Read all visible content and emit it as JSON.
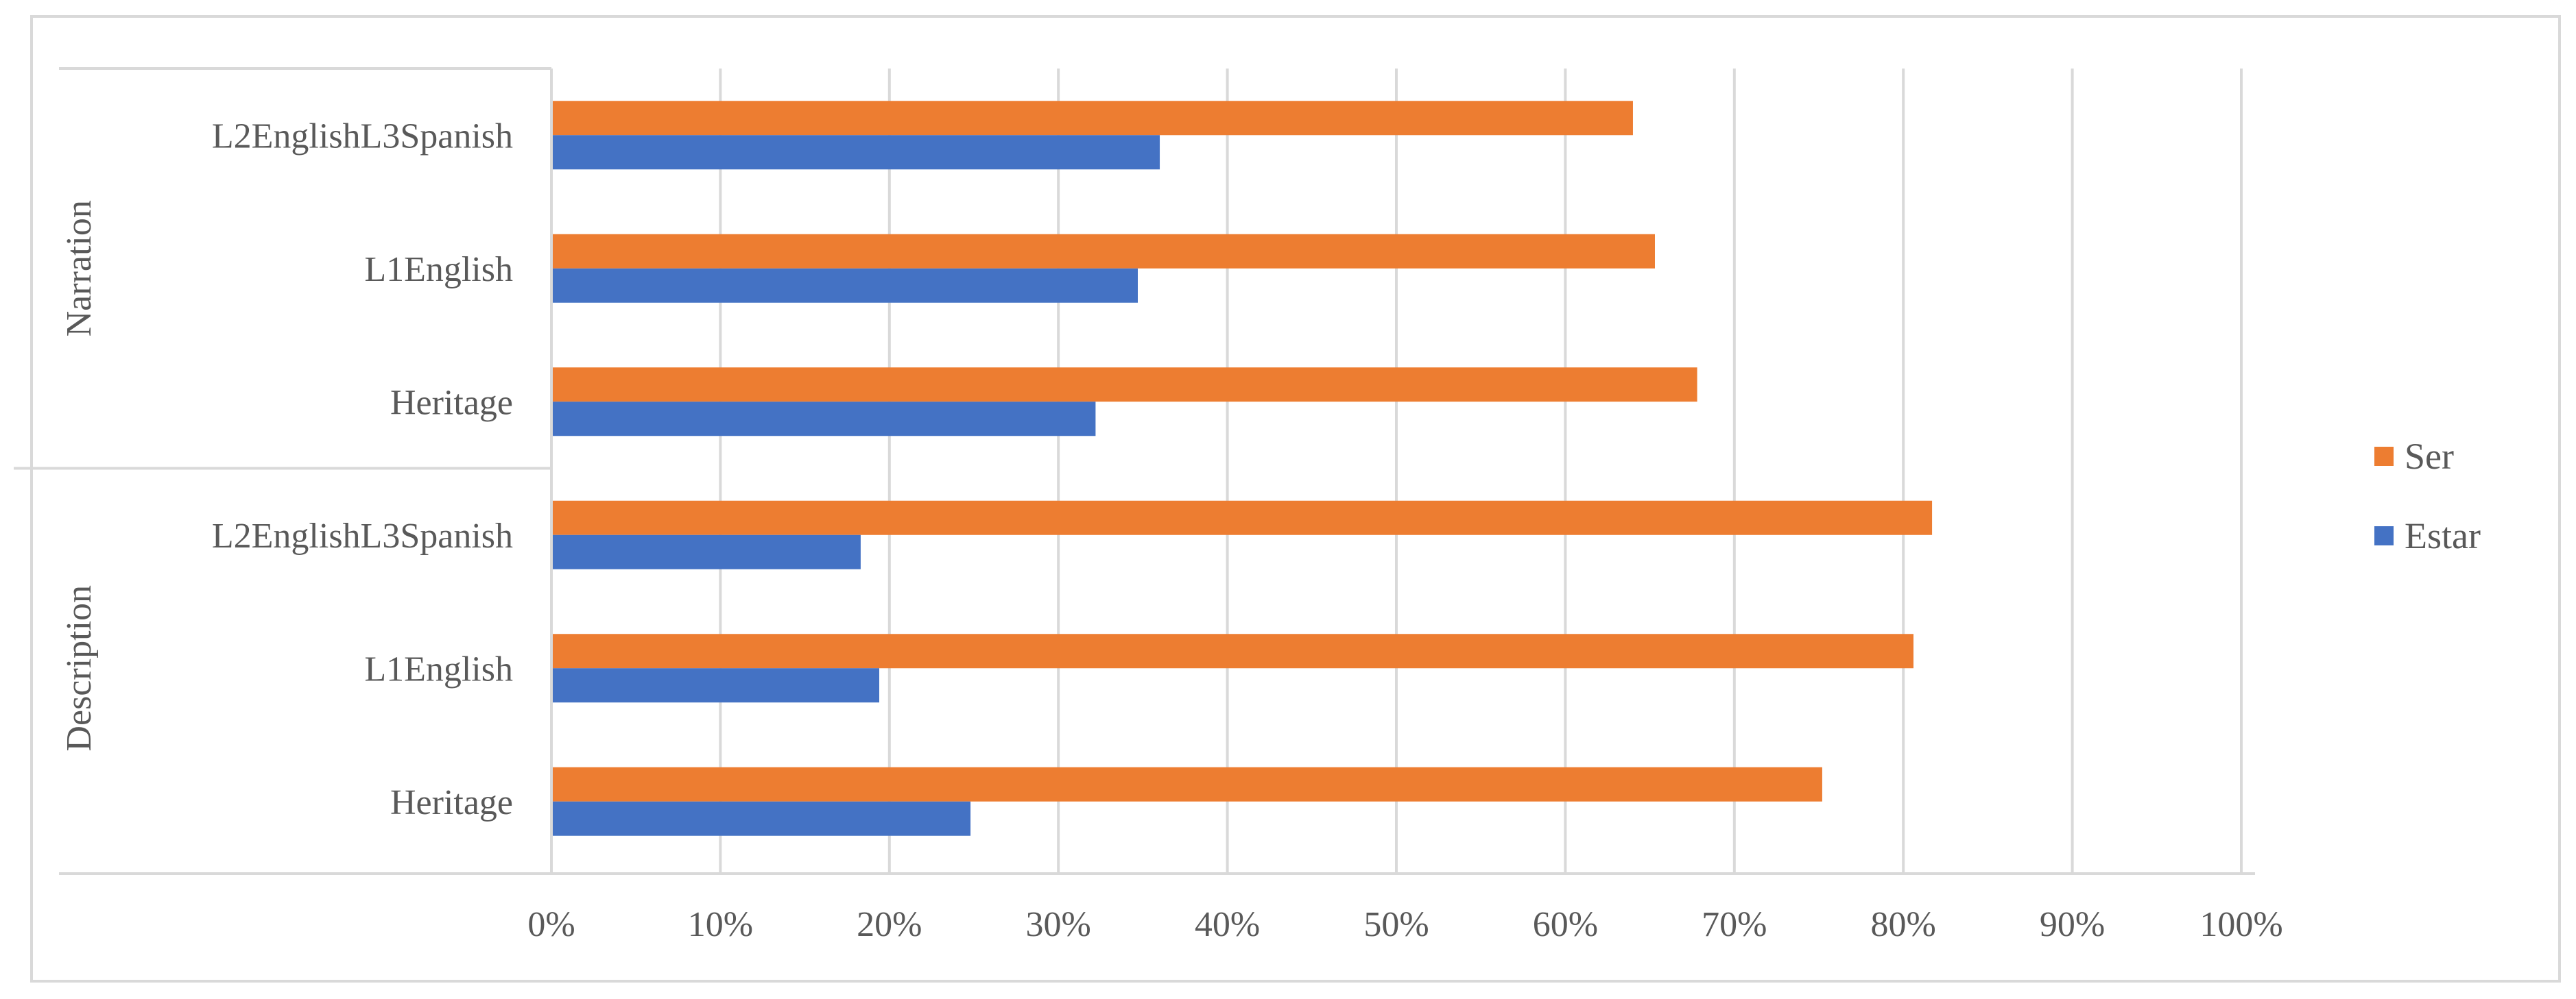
{
  "chart_data": {
    "type": "bar",
    "orientation": "horizontal",
    "groups": [
      {
        "name": "Narration",
        "categories": [
          "L2EnglishL3Spanish",
          "L1English",
          "Heritage"
        ],
        "series": [
          {
            "name": "Ser",
            "values": [
              64,
              65.3,
              67.8
            ]
          },
          {
            "name": "Estar",
            "values": [
              36,
              34.7,
              32.2
            ]
          }
        ]
      },
      {
        "name": "Description",
        "categories": [
          "L2EnglishL3Spanish",
          "L1English",
          "Heritage"
        ],
        "series": [
          {
            "name": "Ser",
            "values": [
              81.7,
              80.6,
              75.2
            ]
          },
          {
            "name": "Estar",
            "values": [
              18.3,
              19.4,
              24.8
            ]
          }
        ]
      }
    ],
    "xlim": [
      0,
      100
    ],
    "xticks": [
      "0%",
      "10%",
      "20%",
      "30%",
      "40%",
      "50%",
      "60%",
      "70%",
      "80%",
      "90%",
      "100%"
    ],
    "grid": true,
    "legend": {
      "placement": "right",
      "entries": [
        {
          "name": "Ser",
          "color": "#ED7D31"
        },
        {
          "name": "Estar",
          "color": "#4472C4"
        }
      ]
    },
    "title": "",
    "xlabel": "",
    "ylabel": ""
  }
}
